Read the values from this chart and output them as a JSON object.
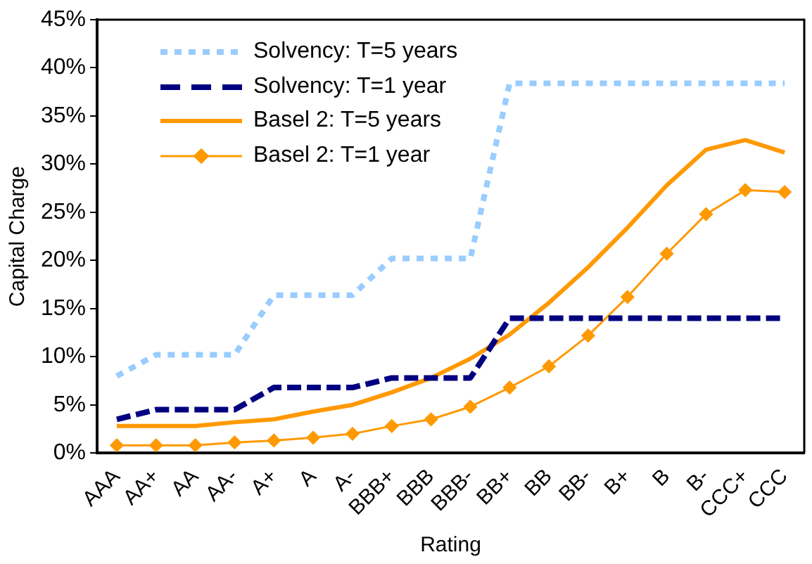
{
  "chart_data": {
    "type": "line",
    "xlabel": "Rating",
    "ylabel": "Capital Charge",
    "categories": [
      "AAA",
      "AA+",
      "AA",
      "AA-",
      "A+",
      "A",
      "A-",
      "BBB+",
      "BBB",
      "BBB-",
      "BB+",
      "BB",
      "BB-",
      "B+",
      "B",
      "B-",
      "CCC+",
      "CCC"
    ],
    "series": [
      {
        "name": "Solvency: T=5 years",
        "color": "#99ccff",
        "line_style": "dotted",
        "marker": "none",
        "values": [
          8,
          10.2,
          10.2,
          10.2,
          16.4,
          16.4,
          16.4,
          20.2,
          20.2,
          20.2,
          38.4,
          38.4,
          38.4,
          38.4,
          38.4,
          38.4,
          38.4,
          38.4
        ]
      },
      {
        "name": "Solvency: T=1 year",
        "color": "#000080",
        "line_style": "dashed",
        "marker": "none",
        "values": [
          3.5,
          4.5,
          4.5,
          4.5,
          6.8,
          6.8,
          6.8,
          7.8,
          7.8,
          7.8,
          14,
          14,
          14,
          14,
          14,
          14,
          14,
          14
        ]
      },
      {
        "name": "Basel 2: T=5 years",
        "color": "#ff9900",
        "line_style": "solid",
        "marker": "none",
        "values": [
          2.8,
          2.8,
          2.8,
          3.2,
          3.5,
          4.3,
          5.0,
          6.3,
          7.8,
          9.8,
          12.3,
          15.6,
          19.3,
          23.4,
          27.8,
          31.5,
          32.5,
          31.2
        ]
      },
      {
        "name": "Basel 2: T=1 year",
        "color": "#ff9900",
        "line_style": "solid",
        "marker": "diamond",
        "values": [
          0.8,
          0.8,
          0.8,
          1.1,
          1.3,
          1.6,
          2.0,
          2.8,
          3.5,
          4.8,
          6.8,
          9.0,
          12.2,
          16.2,
          20.7,
          24.8,
          27.3,
          27.1
        ]
      }
    ],
    "ylim": [
      0,
      45
    ],
    "yticks": [
      {
        "value": 0,
        "label": "0%"
      },
      {
        "value": 5,
        "label": "5%"
      },
      {
        "value": 10,
        "label": "10%"
      },
      {
        "value": 15,
        "label": "15%"
      },
      {
        "value": 20,
        "label": "20%"
      },
      {
        "value": 25,
        "label": "25%"
      },
      {
        "value": 30,
        "label": "30%"
      },
      {
        "value": 35,
        "label": "35%"
      },
      {
        "value": 40,
        "label": "40%"
      },
      {
        "value": 45,
        "label": "45%"
      }
    ],
    "grid": false,
    "legend": "top left"
  }
}
